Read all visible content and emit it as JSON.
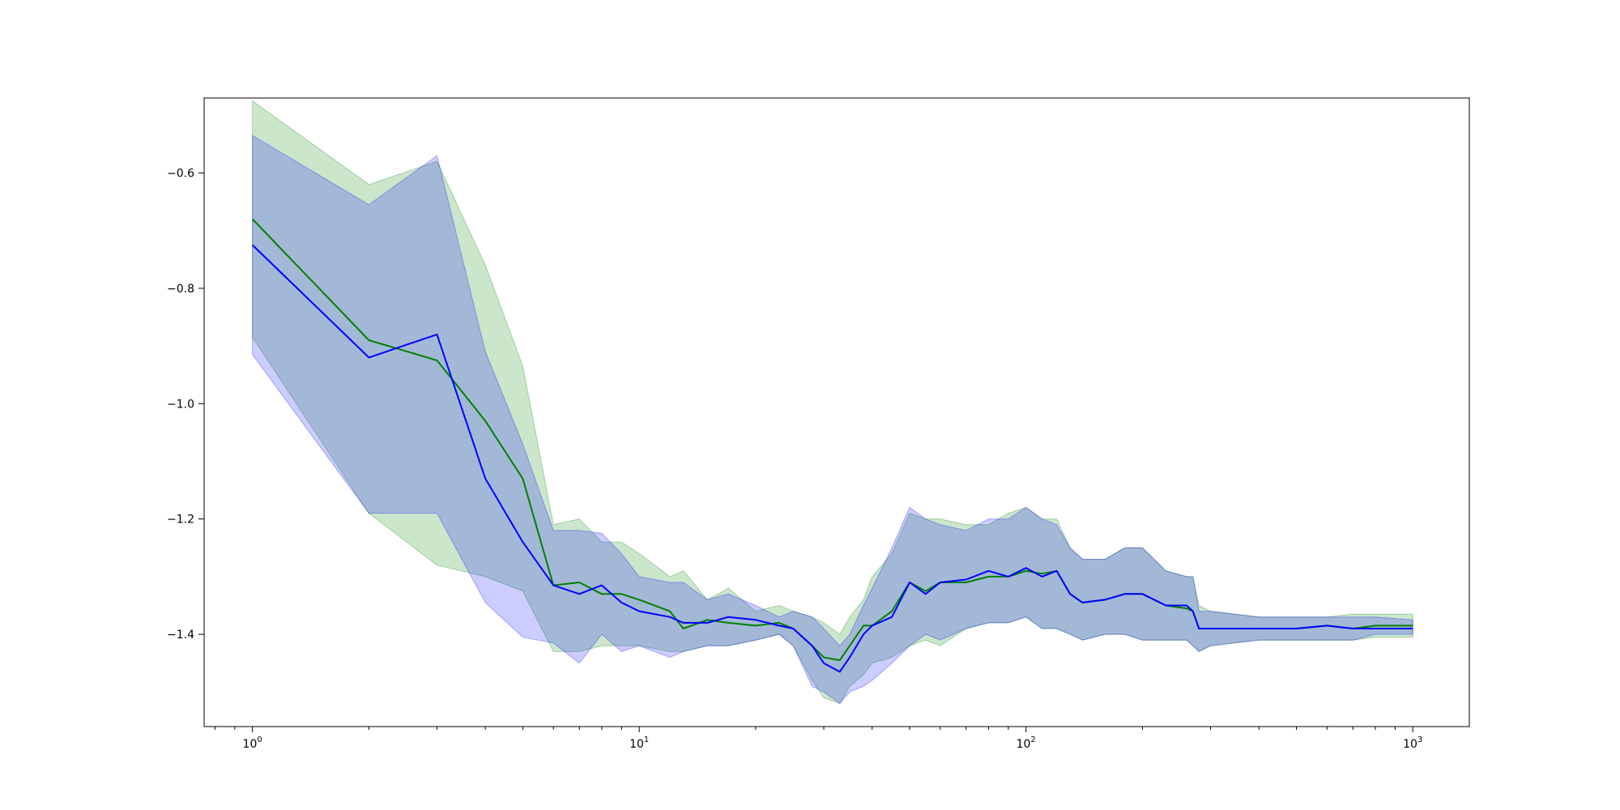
{
  "chart_data": {
    "type": "line",
    "title": "",
    "xlabel": "",
    "ylabel": "",
    "x_scale": "log",
    "xlim": [
      0.75,
      1400
    ],
    "ylim": [
      -1.56,
      -0.47
    ],
    "grid": false,
    "x_ticks": [
      {
        "value": 1,
        "base": "10",
        "exp": "0"
      },
      {
        "value": 10,
        "base": "10",
        "exp": "1"
      },
      {
        "value": 100,
        "base": "10",
        "exp": "2"
      },
      {
        "value": 1000,
        "base": "10",
        "exp": "3"
      }
    ],
    "y_ticks": [
      {
        "value": -0.6,
        "label": "−0.6"
      },
      {
        "value": -0.8,
        "label": "−0.8"
      },
      {
        "value": -1.0,
        "label": "−1.0"
      },
      {
        "value": -1.2,
        "label": "−1.2"
      },
      {
        "value": -1.4,
        "label": "−1.4"
      }
    ],
    "series": [
      {
        "color": "#008000",
        "band_color": "#008000",
        "band_opacity": 0.2,
        "x": [
          1,
          2,
          3,
          4,
          5,
          6,
          7,
          8,
          9,
          10,
          12,
          13,
          15,
          17,
          20,
          23,
          25,
          28,
          30,
          33,
          35,
          38,
          40,
          45,
          50,
          55,
          60,
          70,
          80,
          90,
          100,
          110,
          120,
          130,
          140,
          160,
          180,
          200,
          230,
          260,
          270,
          280,
          300,
          400,
          500,
          600,
          700,
          800,
          1000
        ],
        "values": [
          -0.68,
          -0.89,
          -0.925,
          -1.03,
          -1.13,
          -1.315,
          -1.31,
          -1.33,
          -1.33,
          -1.34,
          -1.36,
          -1.39,
          -1.375,
          -1.38,
          -1.385,
          -1.38,
          -1.39,
          -1.42,
          -1.44,
          -1.445,
          -1.42,
          -1.385,
          -1.385,
          -1.36,
          -1.31,
          -1.325,
          -1.31,
          -1.31,
          -1.3,
          -1.3,
          -1.29,
          -1.295,
          -1.29,
          -1.33,
          -1.345,
          -1.34,
          -1.33,
          -1.33,
          -1.35,
          -1.355,
          -1.36,
          -1.39,
          -1.39,
          -1.39,
          -1.39,
          -1.385,
          -1.39,
          -1.385,
          -1.385
        ],
        "upper": [
          -0.475,
          -0.62,
          -0.58,
          -0.76,
          -0.935,
          -1.21,
          -1.2,
          -1.24,
          -1.24,
          -1.26,
          -1.3,
          -1.29,
          -1.34,
          -1.32,
          -1.36,
          -1.35,
          -1.36,
          -1.37,
          -1.38,
          -1.4,
          -1.37,
          -1.34,
          -1.3,
          -1.26,
          -1.19,
          -1.2,
          -1.2,
          -1.21,
          -1.21,
          -1.19,
          -1.18,
          -1.2,
          -1.2,
          -1.25,
          -1.27,
          -1.27,
          -1.25,
          -1.25,
          -1.29,
          -1.3,
          -1.3,
          -1.35,
          -1.36,
          -1.37,
          -1.37,
          -1.37,
          -1.365,
          -1.365,
          -1.365
        ],
        "lower": [
          -0.885,
          -1.19,
          -1.28,
          -1.3,
          -1.325,
          -1.43,
          -1.43,
          -1.42,
          -1.42,
          -1.42,
          -1.43,
          -1.43,
          -1.42,
          -1.42,
          -1.41,
          -1.4,
          -1.42,
          -1.48,
          -1.51,
          -1.52,
          -1.49,
          -1.47,
          -1.45,
          -1.44,
          -1.42,
          -1.41,
          -1.42,
          -1.39,
          -1.38,
          -1.38,
          -1.37,
          -1.39,
          -1.39,
          -1.4,
          -1.41,
          -1.4,
          -1.4,
          -1.41,
          -1.41,
          -1.41,
          -1.42,
          -1.43,
          -1.42,
          -1.41,
          -1.41,
          -1.41,
          -1.41,
          -1.405,
          -1.405
        ]
      },
      {
        "color": "#0000ff",
        "band_color": "#0000ff",
        "band_opacity": 0.2,
        "x": [
          1,
          2,
          3,
          4,
          5,
          6,
          7,
          8,
          9,
          10,
          12,
          13,
          15,
          17,
          20,
          23,
          25,
          28,
          30,
          33,
          35,
          38,
          40,
          45,
          50,
          55,
          60,
          70,
          80,
          90,
          100,
          110,
          120,
          130,
          140,
          160,
          180,
          200,
          230,
          260,
          270,
          280,
          300,
          400,
          500,
          600,
          700,
          800,
          1000
        ],
        "values": [
          -0.725,
          -0.92,
          -0.88,
          -1.13,
          -1.24,
          -1.315,
          -1.33,
          -1.315,
          -1.345,
          -1.36,
          -1.37,
          -1.38,
          -1.38,
          -1.37,
          -1.375,
          -1.385,
          -1.39,
          -1.42,
          -1.45,
          -1.465,
          -1.44,
          -1.4,
          -1.385,
          -1.37,
          -1.31,
          -1.33,
          -1.31,
          -1.305,
          -1.29,
          -1.3,
          -1.285,
          -1.3,
          -1.29,
          -1.33,
          -1.345,
          -1.34,
          -1.33,
          -1.33,
          -1.35,
          -1.35,
          -1.36,
          -1.39,
          -1.39,
          -1.39,
          -1.39,
          -1.385,
          -1.39,
          -1.39,
          -1.39
        ],
        "upper": [
          -0.535,
          -0.655,
          -0.57,
          -0.91,
          -1.07,
          -1.22,
          -1.22,
          -1.225,
          -1.26,
          -1.3,
          -1.31,
          -1.31,
          -1.34,
          -1.33,
          -1.35,
          -1.37,
          -1.36,
          -1.37,
          -1.39,
          -1.42,
          -1.4,
          -1.35,
          -1.32,
          -1.25,
          -1.18,
          -1.2,
          -1.21,
          -1.22,
          -1.2,
          -1.2,
          -1.18,
          -1.2,
          -1.21,
          -1.25,
          -1.27,
          -1.27,
          -1.25,
          -1.25,
          -1.29,
          -1.3,
          -1.3,
          -1.36,
          -1.36,
          -1.37,
          -1.37,
          -1.37,
          -1.37,
          -1.37,
          -1.375
        ],
        "lower": [
          -0.915,
          -1.19,
          -1.19,
          -1.345,
          -1.405,
          -1.415,
          -1.45,
          -1.4,
          -1.43,
          -1.42,
          -1.44,
          -1.43,
          -1.42,
          -1.42,
          -1.41,
          -1.4,
          -1.42,
          -1.49,
          -1.5,
          -1.52,
          -1.5,
          -1.49,
          -1.48,
          -1.45,
          -1.42,
          -1.4,
          -1.41,
          -1.39,
          -1.38,
          -1.38,
          -1.37,
          -1.39,
          -1.39,
          -1.4,
          -1.41,
          -1.4,
          -1.4,
          -1.41,
          -1.41,
          -1.41,
          -1.42,
          -1.43,
          -1.42,
          -1.41,
          -1.41,
          -1.41,
          -1.41,
          -1.4,
          -1.4
        ]
      }
    ]
  }
}
